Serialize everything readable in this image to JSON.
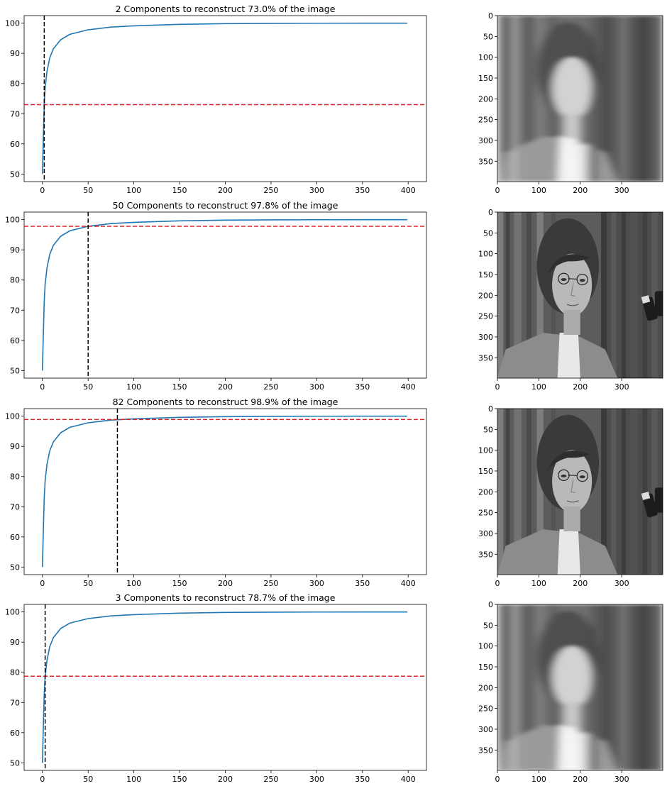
{
  "chart_data": [
    {
      "type": "line",
      "title": "2 Components to reconstruct 73.0% of the image",
      "x": [
        0,
        1,
        2,
        3,
        5,
        8,
        12,
        20,
        30,
        50,
        75,
        100,
        150,
        200,
        250,
        300,
        350,
        399
      ],
      "series": [
        {
          "values": [
            50,
            62,
            73,
            78.7,
            84,
            88.5,
            91.5,
            94.5,
            96.3,
            97.8,
            98.7,
            99.1,
            99.6,
            99.85,
            99.93,
            99.97,
            99.99,
            100
          ],
          "color": "#1f77b4"
        }
      ],
      "hline": {
        "y": 73.0,
        "color": "#d62728",
        "style": "dashed"
      },
      "vline": {
        "x": 2,
        "color": "#000000",
        "style": "dashed"
      },
      "xlim": [
        -20,
        420
      ],
      "ylim": [
        47.5,
        102.5
      ],
      "xticks": [
        "0",
        "50",
        "100",
        "150",
        "200",
        "250",
        "300",
        "350",
        "400"
      ],
      "yticks": [
        "50",
        "60",
        "70",
        "80",
        "90",
        "100"
      ],
      "grid": false
    },
    {
      "type": "line",
      "title": "50 Components to reconstruct 97.8% of the image",
      "x": [
        0,
        1,
        2,
        3,
        5,
        8,
        12,
        20,
        30,
        50,
        75,
        100,
        150,
        200,
        250,
        300,
        350,
        399
      ],
      "series": [
        {
          "values": [
            50,
            62,
            73,
            78.7,
            84,
            88.5,
            91.5,
            94.5,
            96.3,
            97.8,
            98.7,
            99.1,
            99.6,
            99.85,
            99.93,
            99.97,
            99.99,
            100
          ],
          "color": "#1f77b4"
        }
      ],
      "hline": {
        "y": 97.8,
        "color": "#d62728",
        "style": "dashed"
      },
      "vline": {
        "x": 50,
        "color": "#000000",
        "style": "dashed"
      },
      "xlim": [
        -20,
        420
      ],
      "ylim": [
        47.5,
        102.5
      ],
      "xticks": [
        "0",
        "50",
        "100",
        "150",
        "200",
        "250",
        "300",
        "350",
        "400"
      ],
      "yticks": [
        "50",
        "60",
        "70",
        "80",
        "90",
        "100"
      ],
      "grid": false
    },
    {
      "type": "line",
      "title": "82 Components to reconstruct 98.9% of the image",
      "x": [
        0,
        1,
        2,
        3,
        5,
        8,
        12,
        20,
        30,
        50,
        75,
        100,
        150,
        200,
        250,
        300,
        350,
        399
      ],
      "series": [
        {
          "values": [
            50,
            62,
            73,
            78.7,
            84,
            88.5,
            91.5,
            94.5,
            96.3,
            97.8,
            98.7,
            99.1,
            99.6,
            99.85,
            99.93,
            99.97,
            99.99,
            100
          ],
          "color": "#1f77b4"
        }
      ],
      "hline": {
        "y": 98.9,
        "color": "#d62728",
        "style": "dashed"
      },
      "vline": {
        "x": 82,
        "color": "#000000",
        "style": "dashed"
      },
      "xlim": [
        -20,
        420
      ],
      "ylim": [
        47.5,
        102.5
      ],
      "xticks": [
        "0",
        "50",
        "100",
        "150",
        "200",
        "250",
        "300",
        "350",
        "400"
      ],
      "yticks": [
        "50",
        "60",
        "70",
        "80",
        "90",
        "100"
      ],
      "grid": false
    },
    {
      "type": "line",
      "title": "3 Components to reconstruct 78.7% of the image",
      "x": [
        0,
        1,
        2,
        3,
        5,
        8,
        12,
        20,
        30,
        50,
        75,
        100,
        150,
        200,
        250,
        300,
        350,
        399
      ],
      "series": [
        {
          "values": [
            50,
            62,
            73,
            78.7,
            84,
            88.5,
            91.5,
            94.5,
            96.3,
            97.8,
            98.7,
            99.1,
            99.6,
            99.85,
            99.93,
            99.97,
            99.99,
            100
          ],
          "color": "#1f77b4"
        }
      ],
      "hline": {
        "y": 78.7,
        "color": "#d62728",
        "style": "dashed"
      },
      "vline": {
        "x": 3,
        "color": "#000000",
        "style": "dashed"
      },
      "xlim": [
        -20,
        420
      ],
      "ylim": [
        47.5,
        102.5
      ],
      "xticks": [
        "0",
        "50",
        "100",
        "150",
        "200",
        "250",
        "300",
        "350",
        "400"
      ],
      "yticks": [
        "50",
        "60",
        "70",
        "80",
        "90",
        "100"
      ],
      "grid": false
    }
  ],
  "images": [
    {
      "components": 2,
      "blur": "heavy",
      "xticks": [
        "0",
        "100",
        "200",
        "300"
      ],
      "yticks": [
        "0",
        "50",
        "100",
        "150",
        "200",
        "250",
        "300",
        "350"
      ],
      "xlim": [
        0,
        399
      ],
      "ylim": [
        399,
        0
      ]
    },
    {
      "components": 50,
      "blur": "none",
      "xticks": [
        "0",
        "100",
        "200",
        "300"
      ],
      "yticks": [
        "0",
        "50",
        "100",
        "150",
        "200",
        "250",
        "300",
        "350"
      ],
      "xlim": [
        0,
        399
      ],
      "ylim": [
        399,
        0
      ]
    },
    {
      "components": 82,
      "blur": "none",
      "xticks": [
        "0",
        "100",
        "200",
        "300"
      ],
      "yticks": [
        "0",
        "50",
        "100",
        "150",
        "200",
        "250",
        "300",
        "350"
      ],
      "xlim": [
        0,
        399
      ],
      "ylim": [
        399,
        0
      ]
    },
    {
      "components": 3,
      "blur": "heavy",
      "xticks": [
        "0",
        "100",
        "200",
        "300"
      ],
      "yticks": [
        "0",
        "50",
        "100",
        "150",
        "200",
        "250",
        "300",
        "350"
      ],
      "xlim": [
        0,
        399
      ],
      "ylim": [
        399,
        0
      ]
    }
  ],
  "colors": {
    "curve": "#1f77b4",
    "threshold_line": "#d62728",
    "component_line": "#000000"
  }
}
